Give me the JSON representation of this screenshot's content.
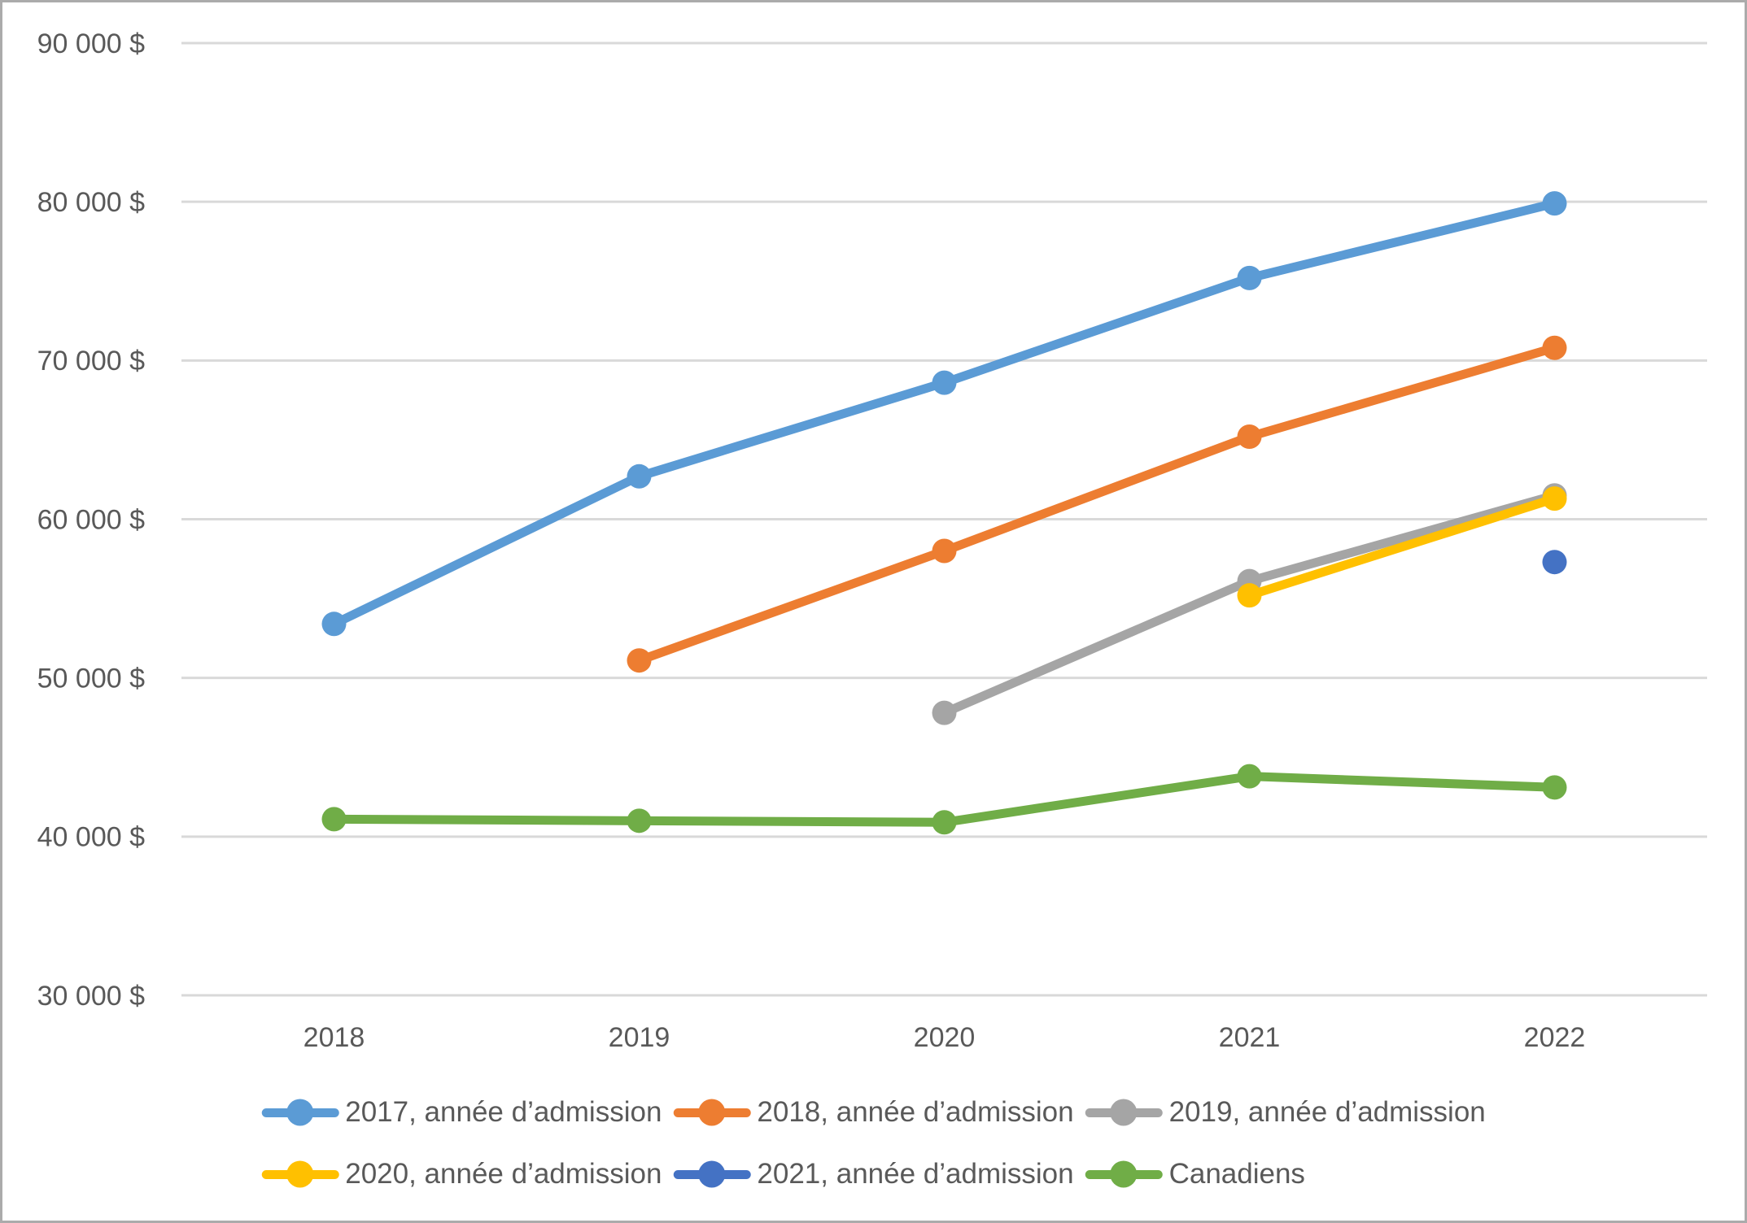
{
  "chart_data": {
    "type": "line",
    "title": "",
    "categories": [
      "2018",
      "2019",
      "2020",
      "2021",
      "2022"
    ],
    "y_axis": {
      "min": 30000,
      "max": 90000,
      "step": 10000,
      "tick_labels": [
        "90 000 $",
        "80 000 $",
        "70 000 $",
        "60 000 $",
        "50 000 $",
        "40 000 $",
        "30 000 $"
      ]
    },
    "grid": true,
    "legend_position": "bottom",
    "series": [
      {
        "name": "2017, année d’admission",
        "color": "#5B9BD5",
        "values": [
          53400,
          62700,
          68600,
          75200,
          79900
        ]
      },
      {
        "name": "2018, année d’admission",
        "color": "#ED7D31",
        "values": [
          null,
          51100,
          58000,
          65200,
          70800
        ]
      },
      {
        "name": "2019, année d’admission",
        "color": "#A5A5A5",
        "values": [
          null,
          null,
          47800,
          56100,
          61500
        ]
      },
      {
        "name": "2020, année d’admission",
        "color": "#FFC000",
        "values": [
          null,
          null,
          null,
          55200,
          61300
        ]
      },
      {
        "name": "2021, année d’admission",
        "color": "#4472C4",
        "values": [
          null,
          null,
          null,
          null,
          57300
        ]
      },
      {
        "name": "Canadiens",
        "color": "#70AD47",
        "values": [
          41100,
          41000,
          40900,
          43800,
          43100
        ]
      }
    ],
    "colors": {
      "axis_text": "#595959",
      "gridline": "#D9D9D9",
      "border": "#ABABAB",
      "background": "#FFFFFF"
    }
  }
}
